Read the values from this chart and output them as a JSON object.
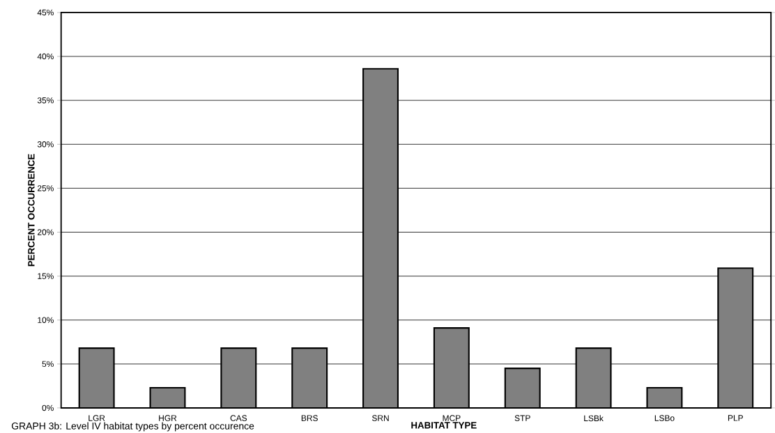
{
  "chart_data": {
    "type": "bar",
    "xlabel": "HABITAT TYPE",
    "ylabel": "PERCENT OCCURRENCE",
    "annotations": [
      "GRAPH 3b: Level IV habitat types by percent occurence"
    ],
    "categories": [
      "LGR",
      "HGR",
      "CAS",
      "BRS",
      "SRN",
      "MCP",
      "STP",
      "LSBk",
      "LSBo",
      "PLP"
    ],
    "values": [
      6.8,
      2.3,
      6.8,
      6.8,
      38.6,
      9.1,
      4.5,
      6.8,
      2.3,
      15.9
    ],
    "color": "#808080",
    "ylim": [
      0,
      45
    ],
    "yticks": [
      {
        "value": 0,
        "label": "0%"
      },
      {
        "value": 5,
        "label": "5%"
      },
      {
        "value": 10,
        "label": "10%"
      },
      {
        "value": 15,
        "label": "15%"
      },
      {
        "value": 20,
        "label": "20%"
      },
      {
        "value": 25,
        "label": "25%"
      },
      {
        "value": 30,
        "label": "30%"
      },
      {
        "value": 35,
        "label": "35%"
      },
      {
        "value": 40,
        "label": "40%"
      },
      {
        "value": 45,
        "label": "45%"
      }
    ],
    "grid": "y"
  }
}
